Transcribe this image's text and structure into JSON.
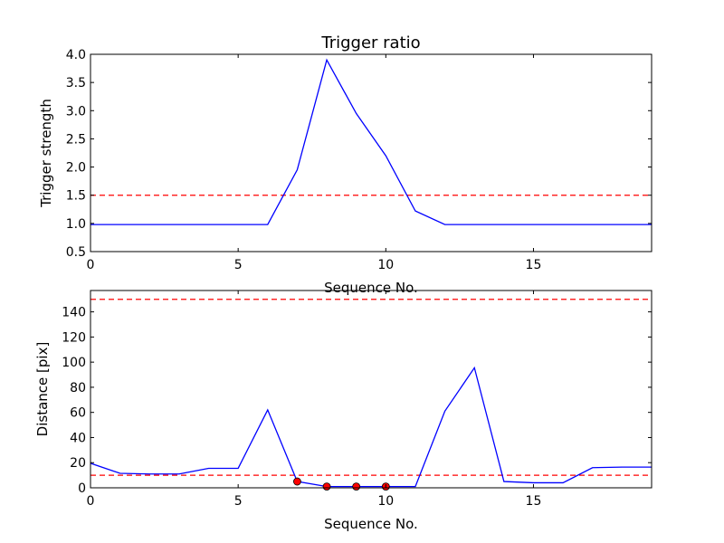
{
  "chart_data": [
    {
      "type": "line",
      "title": "Trigger ratio",
      "xlabel": "Sequence No.",
      "ylabel": "Trigger strength",
      "xlim": [
        0,
        19
      ],
      "ylim": [
        0.5,
        4.0
      ],
      "xticks": [
        0,
        5,
        10,
        15
      ],
      "yticks": [
        0.5,
        1.0,
        1.5,
        2.0,
        2.5,
        3.0,
        3.5,
        4.0
      ],
      "xtick_labels": [
        "0",
        "5",
        "10",
        "15"
      ],
      "ytick_labels": [
        "0.5",
        "1.0",
        "1.5",
        "2.0",
        "2.5",
        "3.0",
        "3.5",
        "4.0"
      ],
      "grid": false,
      "series": [
        {
          "color": "#0000ff",
          "style": "solid",
          "x": [
            0,
            1,
            2,
            3,
            4,
            5,
            6,
            7,
            8,
            9,
            10,
            11,
            12,
            13,
            14,
            15,
            16,
            17,
            18,
            19
          ],
          "y": [
            0.98,
            0.98,
            0.98,
            0.98,
            0.98,
            0.98,
            0.98,
            1.95,
            3.9,
            2.95,
            2.2,
            1.22,
            0.98,
            0.98,
            0.98,
            0.98,
            0.98,
            0.98,
            0.98,
            0.98
          ]
        }
      ],
      "hlines": [
        {
          "y": 1.5,
          "color": "#ff0000",
          "style": "dashed"
        }
      ]
    },
    {
      "type": "line",
      "title": "",
      "xlabel": "Sequence No.",
      "ylabel": "Distance [pix]",
      "xlim": [
        0,
        19
      ],
      "ylim": [
        0,
        157
      ],
      "xticks": [
        0,
        5,
        10,
        15
      ],
      "yticks": [
        0,
        20,
        40,
        60,
        80,
        100,
        120,
        140
      ],
      "xtick_labels": [
        "0",
        "5",
        "10",
        "15"
      ],
      "ytick_labels": [
        "0",
        "20",
        "40",
        "60",
        "80",
        "100",
        "120",
        "140"
      ],
      "grid": false,
      "series": [
        {
          "color": "#0000ff",
          "style": "solid",
          "x": [
            0,
            1,
            2,
            3,
            4,
            5,
            6,
            7,
            8,
            9,
            10,
            11,
            12,
            13,
            14,
            15,
            16,
            17,
            18,
            19
          ],
          "y": [
            19.5,
            11.5,
            11,
            11,
            15.5,
            15.5,
            62,
            5,
            1,
            1,
            1,
            1,
            61,
            95.5,
            5,
            4,
            4,
            16,
            16.5,
            16.5
          ]
        }
      ],
      "markers": {
        "color": "#ff0000",
        "x": [
          7,
          8,
          9,
          10
        ],
        "y": [
          5,
          1,
          1,
          1
        ]
      },
      "hlines": [
        {
          "y": 10,
          "color": "#ff0000",
          "style": "dashed"
        },
        {
          "y": 150,
          "color": "#ff0000",
          "style": "dashed"
        }
      ]
    }
  ]
}
